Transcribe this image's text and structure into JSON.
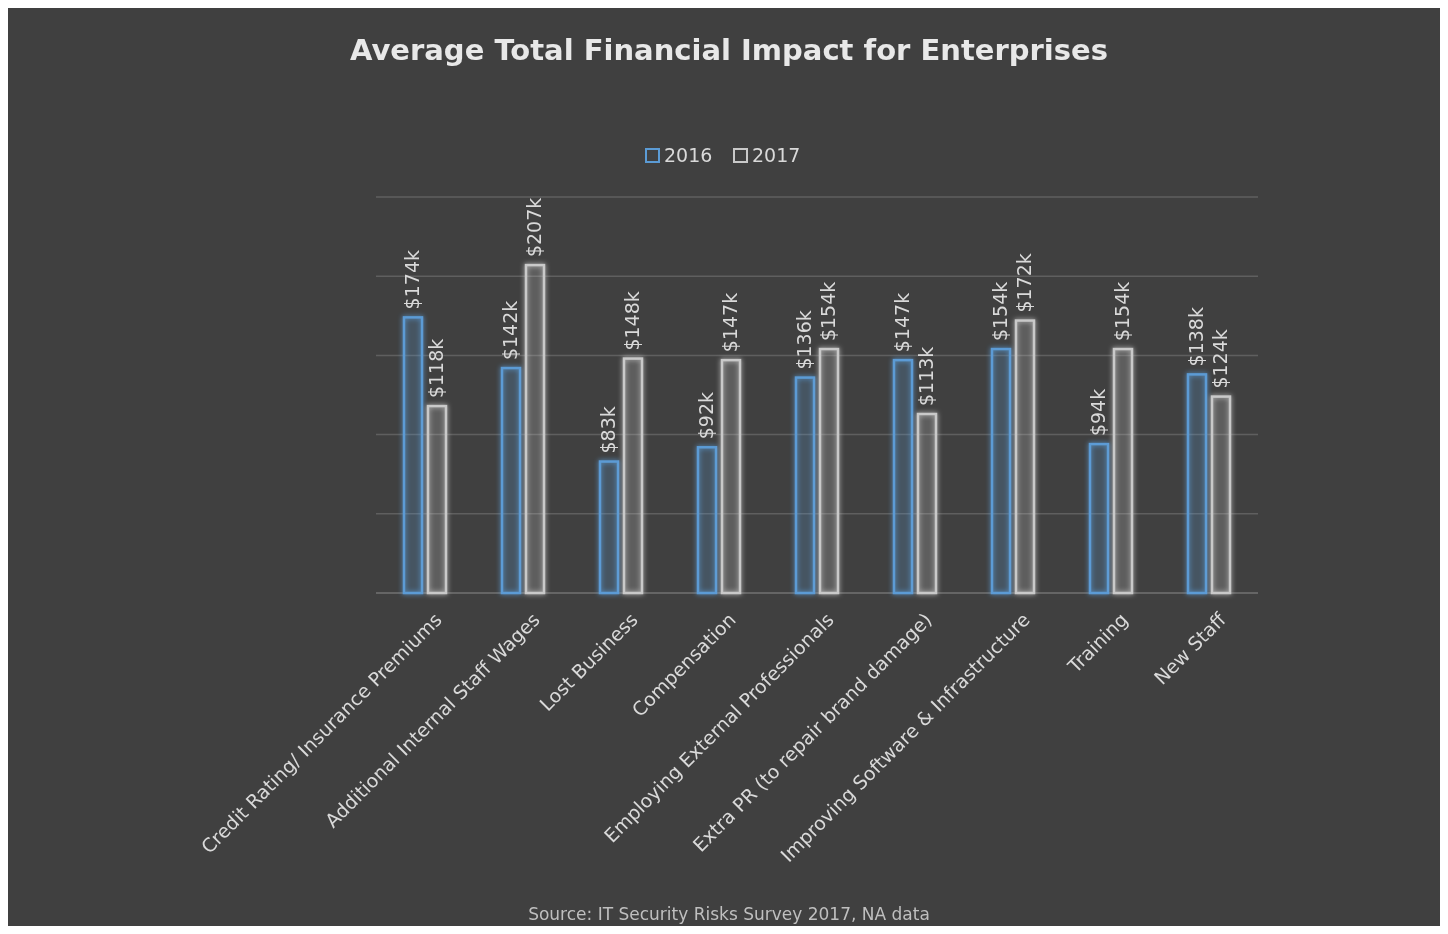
{
  "chart_data": {
    "type": "bar",
    "title": "Average Total Financial Impact for Enterprises",
    "categories": [
      "Credit Rating/ Insurance Premiums",
      "Additional Internal Staff Wages",
      "Lost Business",
      "Compensation",
      "Employing External Professionals",
      "Extra PR (to repair brand damage)",
      "Improving Software & Infrastructure",
      "Training",
      "New Staff"
    ],
    "series": [
      {
        "name": "2016",
        "color": "#5b9bd5",
        "values": [
          174,
          142,
          83,
          92,
          136,
          147,
          154,
          94,
          138
        ],
        "value_labels": [
          "$174k",
          "$142k",
          "$83k",
          "$92k",
          "$136k",
          "$147k",
          "$154k",
          "$94k",
          "$138k"
        ]
      },
      {
        "name": "2017",
        "color": "#c9c9c9",
        "values": [
          118,
          207,
          148,
          147,
          154,
          113,
          172,
          154,
          124
        ],
        "value_labels": [
          "$118k",
          "$207k",
          "$148k",
          "$147k",
          "$154k",
          "$113k",
          "$172k",
          "$154k",
          "$124k"
        ]
      }
    ],
    "ylim": [
      0,
      250
    ],
    "yticks": [
      {
        "value": 0,
        "label": null
      },
      {
        "value": 50,
        "label": null
      },
      {
        "value": 100,
        "label": null
      },
      {
        "value": 150,
        "label": null
      },
      {
        "value": 200,
        "label": null
      },
      {
        "value": 250,
        "label": null
      }
    ],
    "tick_labels": "x",
    "grid": "y",
    "legend": "top",
    "annotations": [
      "Source: IT Security Risks Survey 2017, NA data"
    ]
  }
}
